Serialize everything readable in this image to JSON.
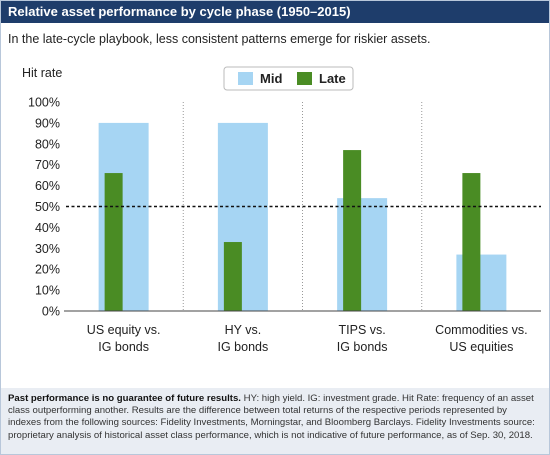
{
  "header": {
    "title": "Relative asset performance by cycle phase (1950–2015)",
    "subtitle": "In the late-cycle playbook, less consistent patterns emerge for riskier assets."
  },
  "chart_data": {
    "type": "bar",
    "title": "Relative asset performance by cycle phase (1950–2015)",
    "subtitle": "In the late-cycle playbook, less consistent patterns emerge for riskier assets.",
    "ylabel": "Hit rate",
    "xlabel": "",
    "ylim": [
      0,
      100
    ],
    "yticks": [
      0,
      10,
      20,
      30,
      40,
      50,
      60,
      70,
      80,
      90,
      100
    ],
    "ytick_suffix": "%",
    "grid": "vertical separators between categories",
    "legend_position": "top-center",
    "reference_line": {
      "value": 50,
      "style": "dashed"
    },
    "categories": [
      [
        "US equity vs.",
        "IG bonds"
      ],
      [
        "HY vs.",
        "IG bonds"
      ],
      [
        "TIPS vs.",
        "IG bonds"
      ],
      [
        "Commodities vs.",
        "US equities"
      ]
    ],
    "series": [
      {
        "name": "Mid",
        "color": "#a6d5f3",
        "values": [
          90,
          90,
          54,
          27
        ]
      },
      {
        "name": "Late",
        "color": "#4a8c24",
        "values": [
          66,
          33,
          77,
          66
        ]
      }
    ]
  },
  "footnote": {
    "bold": "Past performance is no guarantee of future results.",
    "text": " HY: high yield. IG: investment grade. Hit Rate: frequency of an asset class outperforming another. Results are the difference between total returns of the respective periods represented by indexes from the following sources: Fidelity Investments, Morningstar, and Bloomberg Barclays. Fidelity Investments source: proprietary analysis of historical asset class performance, which is not indicative of future performance, as of Sep. 30, 2018."
  }
}
